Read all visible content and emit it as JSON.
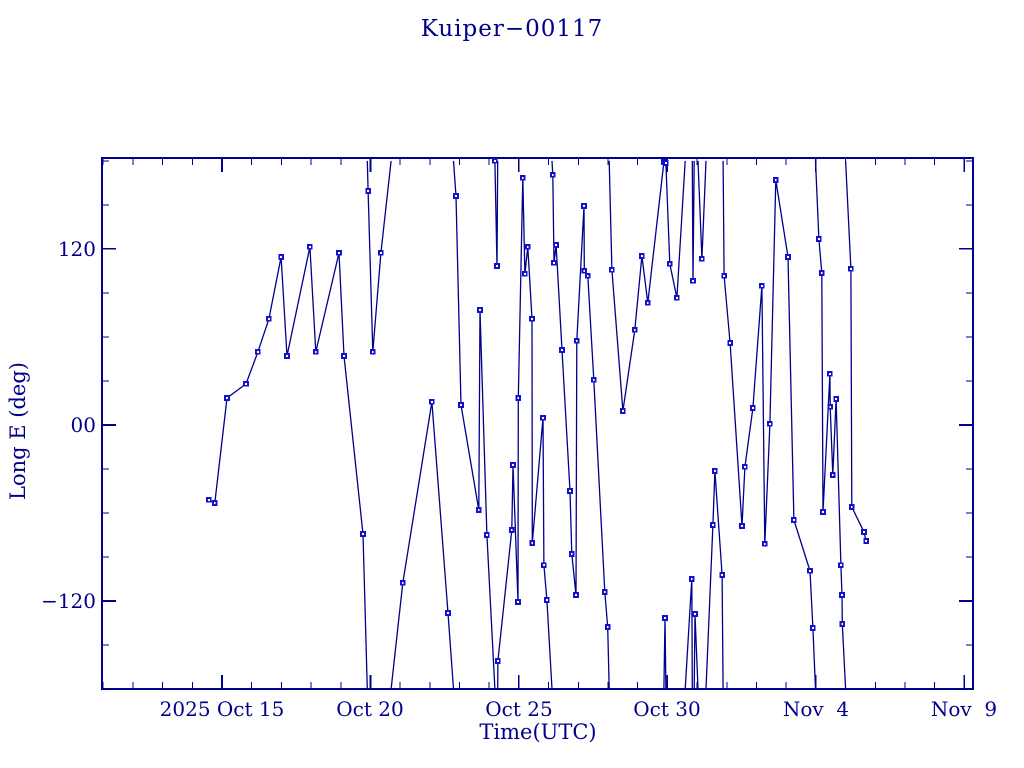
{
  "colors": {
    "background": "#ffffff",
    "axis": "#00008b",
    "text": "#00008b",
    "line": "#00008b",
    "marker": "#1212cc",
    "marker_center": "#ffffff"
  },
  "chart_data": {
    "type": "line",
    "title": "Kuiper−00117",
    "xlabel": "Time(UTC)",
    "ylabel": "Long E (deg)",
    "x_unit": "days since 2025-10-10 00:00 UTC",
    "xlim": [
      0.96,
      30.29
    ],
    "ylim": [
      -180,
      182
    ],
    "grid": false,
    "legend": "none",
    "wrap_at": 180,
    "x_major_ticks": [
      {
        "d": 5,
        "label": "2025 Oct 15"
      },
      {
        "d": 10,
        "label": "Oct 20"
      },
      {
        "d": 15,
        "label": "Oct 25"
      },
      {
        "d": 20,
        "label": "Oct 30"
      },
      {
        "d": 25,
        "label": "Nov  4"
      },
      {
        "d": 30,
        "label": "Nov  9"
      }
    ],
    "x_minor_step_days": 1,
    "y_major_ticks": [
      {
        "v": 120,
        "label": "120"
      },
      {
        "v": 0,
        "label": "00"
      },
      {
        "v": -120,
        "label": "−120"
      }
    ],
    "y_minor_step_deg": 30,
    "points": [
      [
        4.56,
        -51.1
      ],
      [
        4.76,
        -53.2
      ],
      [
        5.17,
        18.4
      ],
      [
        5.81,
        28.0
      ],
      [
        6.21,
        49.8
      ],
      [
        6.58,
        72.3
      ],
      [
        6.99,
        114.5
      ],
      [
        7.19,
        47.0
      ],
      [
        7.96,
        121.4
      ],
      [
        8.16,
        49.8
      ],
      [
        8.94,
        117.3
      ],
      [
        9.11,
        47.0
      ],
      [
        9.75,
        -74.3
      ],
      [
        9.92,
        159.5
      ],
      [
        10.08,
        49.8
      ],
      [
        10.35,
        117.3
      ],
      [
        11.09,
        -107.7
      ],
      [
        12.07,
        15.7
      ],
      [
        12.61,
        -128.2
      ],
      [
        12.88,
        156.1
      ],
      [
        13.05,
        13.6
      ],
      [
        13.65,
        -58.0
      ],
      [
        13.69,
        78.4
      ],
      [
        13.92,
        -75.0
      ],
      [
        14.19,
        180.0
      ],
      [
        14.26,
        108.4
      ],
      [
        14.29,
        -160.9
      ],
      [
        14.76,
        -71.6
      ],
      [
        14.8,
        -27.3
      ],
      [
        14.97,
        -120.7
      ],
      [
        14.98,
        18.4
      ],
      [
        15.13,
        168.4
      ],
      [
        15.2,
        103.0
      ],
      [
        15.3,
        121.4
      ],
      [
        15.44,
        72.3
      ],
      [
        15.45,
        -80.5
      ],
      [
        15.81,
        4.8
      ],
      [
        15.84,
        -95.5
      ],
      [
        15.94,
        -119.3
      ],
      [
        16.14,
        170.5
      ],
      [
        16.18,
        110.5
      ],
      [
        16.25,
        122.7
      ],
      [
        16.45,
        51.1
      ],
      [
        16.72,
        -45.0
      ],
      [
        16.78,
        -88.0
      ],
      [
        16.92,
        -115.9
      ],
      [
        16.95,
        57.3
      ],
      [
        17.19,
        149.3
      ],
      [
        17.2,
        105.0
      ],
      [
        17.32,
        101.6
      ],
      [
        17.52,
        30.7
      ],
      [
        17.89,
        -113.9
      ],
      [
        17.99,
        -137.7
      ],
      [
        18.13,
        105.7
      ],
      [
        18.5,
        9.5
      ],
      [
        18.9,
        64.8
      ],
      [
        19.14,
        115.2
      ],
      [
        19.34,
        83.2
      ],
      [
        19.88,
        179.3
      ],
      [
        19.92,
        -131.6
      ],
      [
        19.95,
        178.6
      ],
      [
        20.08,
        109.8
      ],
      [
        20.32,
        86.6
      ],
      [
        20.82,
        -105.0
      ],
      [
        20.86,
        98.2
      ],
      [
        20.93,
        -128.9
      ],
      [
        21.16,
        113.2
      ],
      [
        21.53,
        -68.2
      ],
      [
        21.6,
        -31.4
      ],
      [
        21.84,
        -102.3
      ],
      [
        21.91,
        101.6
      ],
      [
        22.11,
        55.9
      ],
      [
        22.51,
        -68.9
      ],
      [
        22.61,
        -28.6
      ],
      [
        22.88,
        11.6
      ],
      [
        23.18,
        94.8
      ],
      [
        23.28,
        -81.1
      ],
      [
        23.45,
        0.7
      ],
      [
        23.65,
        167.0
      ],
      [
        24.06,
        114.5
      ],
      [
        24.26,
        -64.8
      ],
      [
        24.8,
        -99.5
      ],
      [
        24.9,
        -138.4
      ],
      [
        25.1,
        126.8
      ],
      [
        25.2,
        103.6
      ],
      [
        25.24,
        -59.3
      ],
      [
        25.47,
        34.8
      ],
      [
        25.48,
        12.3
      ],
      [
        25.57,
        -34.1
      ],
      [
        25.68,
        17.7
      ],
      [
        25.84,
        -95.5
      ],
      [
        25.88,
        -115.9
      ],
      [
        25.89,
        -135.7
      ],
      [
        26.18,
        106.4
      ],
      [
        26.21,
        -55.9
      ],
      [
        26.62,
        -73.0
      ],
      [
        26.69,
        -79.1
      ]
    ]
  }
}
